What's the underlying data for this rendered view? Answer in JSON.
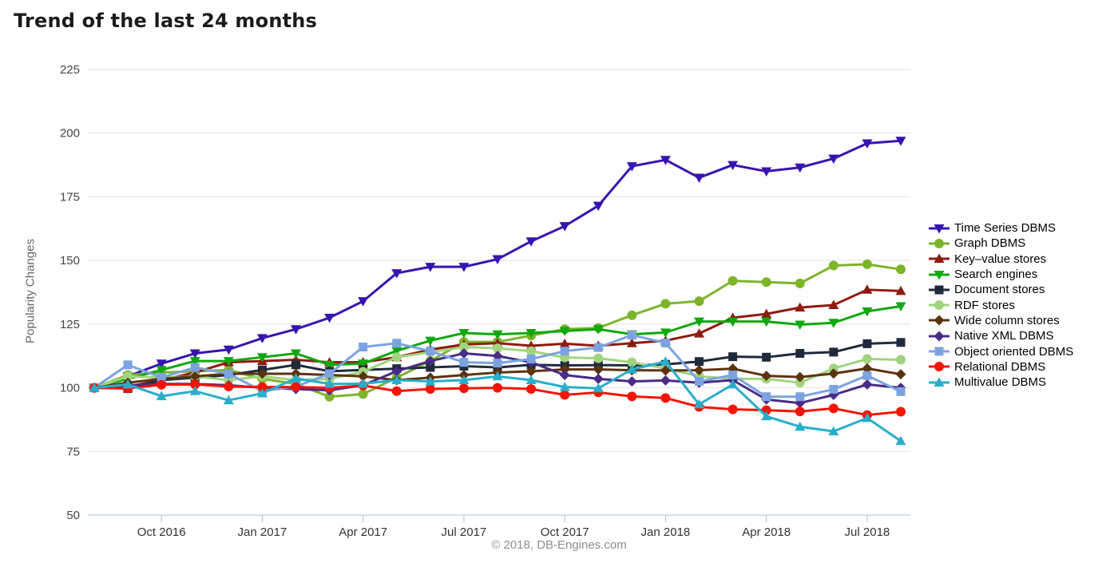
{
  "header": {
    "title": "Trend of the last 24 months"
  },
  "footer": {
    "copyright": "© 2018, DB-Engines.com"
  },
  "colors": {
    "grid": "#e3e3e3",
    "axis": "#a9c0d6",
    "tick_label": "#444444",
    "x_label": "#333333",
    "title_text": "#1b1b1b",
    "copyright_text": "#8d8d8d"
  },
  "chart_data": {
    "type": "line",
    "title": "Trend of the last 24 months",
    "xlabel": "",
    "ylabel": "Popularity Changes",
    "ylim": [
      50,
      225
    ],
    "grid": "horizontal",
    "legend_position": "right",
    "y_ticks": [
      225,
      200,
      175,
      150,
      125,
      100,
      75,
      50
    ],
    "x_labels": [
      "Aug 2016",
      "Sep 2016",
      "Oct 2016",
      "Nov 2016",
      "Dec 2016",
      "Jan 2017",
      "Feb 2017",
      "Mar 2017",
      "Apr 2017",
      "May 2017",
      "Jun 2017",
      "Jul 2017",
      "Aug 2017",
      "Sep 2017",
      "Oct 2017",
      "Nov 2017",
      "Dec 2017",
      "Jan 2018",
      "Feb 2018",
      "Mar 2018",
      "Apr 2018",
      "May 2018",
      "Jun 2018",
      "Jul 2018",
      "Aug 2018"
    ],
    "x_ticks": [
      {
        "index": 2,
        "label": "Oct 2016"
      },
      {
        "index": 5,
        "label": "Jan 2017"
      },
      {
        "index": 8,
        "label": "Apr 2017"
      },
      {
        "index": 11,
        "label": "Jul 2017"
      },
      {
        "index": 14,
        "label": "Oct 2017"
      },
      {
        "index": 17,
        "label": "Jan 2018"
      },
      {
        "index": 20,
        "label": "Apr 2018"
      },
      {
        "index": 23,
        "label": "Jul 2018"
      }
    ],
    "series": [
      {
        "name": "Time Series DBMS",
        "color": "#3714b0",
        "marker": "triangle-down",
        "values": [
          100,
          104.5,
          109.5,
          113.5,
          115,
          119.5,
          123,
          127.5,
          134,
          145,
          147.5,
          147.5,
          150.5,
          157.5,
          163.5,
          171.5,
          187,
          189.5,
          182.5,
          187.5,
          185,
          186.5,
          190,
          196,
          197
        ]
      },
      {
        "name": "Graph DBMS",
        "color": "#7cb52b",
        "marker": "circle",
        "values": [
          100,
          105,
          106,
          106.5,
          107,
          103.5,
          101.5,
          96.5,
          97.5,
          104,
          110.5,
          118,
          118,
          120.5,
          123,
          123.5,
          128.5,
          133,
          134,
          142,
          141.5,
          141,
          148,
          148.5,
          146.5
        ]
      },
      {
        "name": "Key–value stores",
        "color": "#8f1a10",
        "marker": "triangle-up",
        "values": [
          100,
          100.5,
          103,
          106,
          110,
          110.5,
          111,
          110,
          110,
          112,
          115,
          117,
          117.5,
          116.5,
          117.3,
          116.5,
          117.5,
          118.5,
          121.3,
          127.5,
          129,
          131.5,
          132.5,
          138.5,
          138
        ]
      },
      {
        "name": "Search engines",
        "color": "#0fa80f",
        "marker": "triangle-down",
        "values": [
          100,
          103.5,
          107,
          110.5,
          110.5,
          112,
          113.5,
          109,
          109.5,
          114.5,
          118.5,
          121.5,
          121,
          121.5,
          122.3,
          123,
          121,
          121.7,
          126,
          126,
          126,
          124.8,
          125.5,
          130,
          132
        ]
      },
      {
        "name": "Document stores",
        "color": "#1f2a3d",
        "marker": "square",
        "values": [
          100,
          99.7,
          103,
          104,
          105,
          107,
          109,
          106.5,
          107,
          107.5,
          108,
          108.5,
          108,
          109,
          108.8,
          108.9,
          108.8,
          109.2,
          110.3,
          112.2,
          112,
          113.5,
          114,
          117.3,
          117.8
        ]
      },
      {
        "name": "RDF stores",
        "color": "#a2d47f",
        "marker": "circle",
        "values": [
          100,
          104.5,
          104,
          104.5,
          103,
          104.5,
          103,
          103.5,
          106.3,
          112,
          114,
          116,
          115.5,
          114.4,
          111.9,
          111.6,
          110,
          107.6,
          104.5,
          103.5,
          103.5,
          102,
          107.6,
          111.3,
          111
        ]
      },
      {
        "name": "Wide column stores",
        "color": "#5c330f",
        "marker": "diamond",
        "values": [
          100,
          102,
          103.5,
          104.5,
          105.5,
          105.5,
          105.5,
          105,
          104.5,
          103,
          104,
          105,
          106,
          106.5,
          107.2,
          107.2,
          106.9,
          106.8,
          106.9,
          107.5,
          104.7,
          104.2,
          105.6,
          107.6,
          105.3
        ]
      },
      {
        "name": "Native XML DBMS",
        "color": "#4a2b85",
        "marker": "diamond",
        "values": [
          100,
          101,
          101.5,
          101.5,
          101,
          100,
          99.5,
          99,
          101,
          106.5,
          110.5,
          113.5,
          112.5,
          110,
          105,
          103.5,
          102.5,
          102.9,
          102,
          103,
          95.4,
          94,
          97.2,
          101.3,
          100
        ]
      },
      {
        "name": "Object oriented DBMS",
        "color": "#7ca3e0",
        "marker": "square",
        "values": [
          100,
          109,
          104,
          108,
          105.5,
          98.7,
          100.5,
          105.5,
          116,
          117.5,
          114.4,
          110,
          109.7,
          111.3,
          114.4,
          115.8,
          120.7,
          117.6,
          102.5,
          105,
          96.5,
          96.5,
          99.4,
          104.8,
          98.5
        ]
      },
      {
        "name": "Relational DBMS",
        "color": "#f11505",
        "marker": "circle",
        "values": [
          100,
          99.8,
          101.2,
          101.3,
          100.5,
          100.3,
          100.3,
          100,
          100.9,
          98.7,
          99.5,
          99.8,
          100,
          99.5,
          97.2,
          98.2,
          96.6,
          96,
          92.5,
          91.5,
          91.2,
          90.7,
          91.9,
          89.3,
          90.6
        ]
      },
      {
        "name": "Multivalue DBMS",
        "color": "#28aecb",
        "marker": "triangle-up",
        "values": [
          100,
          101.3,
          96.7,
          98.7,
          95.1,
          97.8,
          103.7,
          101.5,
          101.6,
          103,
          102.5,
          103,
          104.5,
          103,
          100.3,
          99.8,
          107.2,
          110.3,
          93.5,
          101.3,
          88.8,
          84.7,
          82.9,
          88.1,
          79.1
        ]
      }
    ]
  }
}
